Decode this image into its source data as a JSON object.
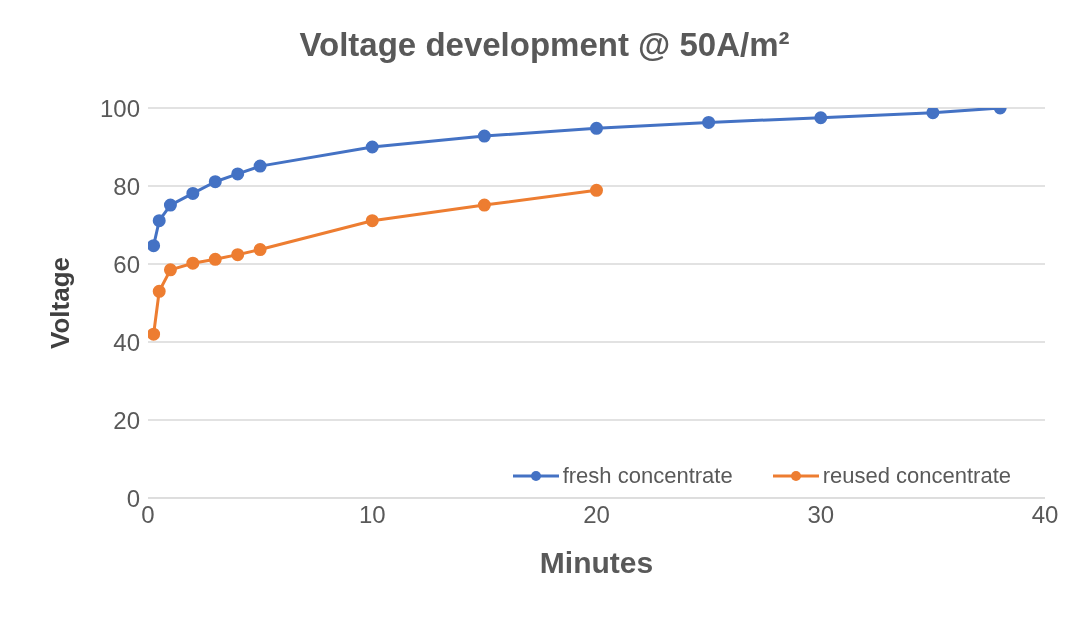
{
  "chart_data": {
    "type": "line",
    "title": "Voltage development @ 50A/m²",
    "xlabel": "Minutes",
    "ylabel": "Voltage",
    "xlim": [
      0,
      40
    ],
    "xticks": [
      0,
      10,
      20,
      30,
      40
    ],
    "ylim": [
      0,
      100
    ],
    "yticks": [
      0,
      20,
      40,
      60,
      80,
      100
    ],
    "grid": "y",
    "legend": "bottom right",
    "marker": "circle",
    "line_style": "solid",
    "series": [
      {
        "name": "fresh concentrate",
        "color": "#4472c4",
        "x": [
          0.25,
          0.5,
          1,
          2,
          3,
          4,
          5,
          10,
          15,
          20,
          25,
          30,
          35,
          38
        ],
        "values": [
          64.7,
          71.1,
          75.1,
          78.1,
          81.1,
          83.1,
          85.1,
          90,
          92.8,
          94.8,
          96.3,
          97.5,
          98.8,
          100
        ]
      },
      {
        "name": "reused concentrate",
        "color": "#ed7d31",
        "x": [
          0.25,
          0.5,
          1,
          2,
          3,
          4,
          5,
          10,
          15,
          20
        ],
        "values": [
          42,
          53,
          58.5,
          60.2,
          61.2,
          62.4,
          63.7,
          71.1,
          75.1,
          78.9
        ]
      }
    ]
  }
}
